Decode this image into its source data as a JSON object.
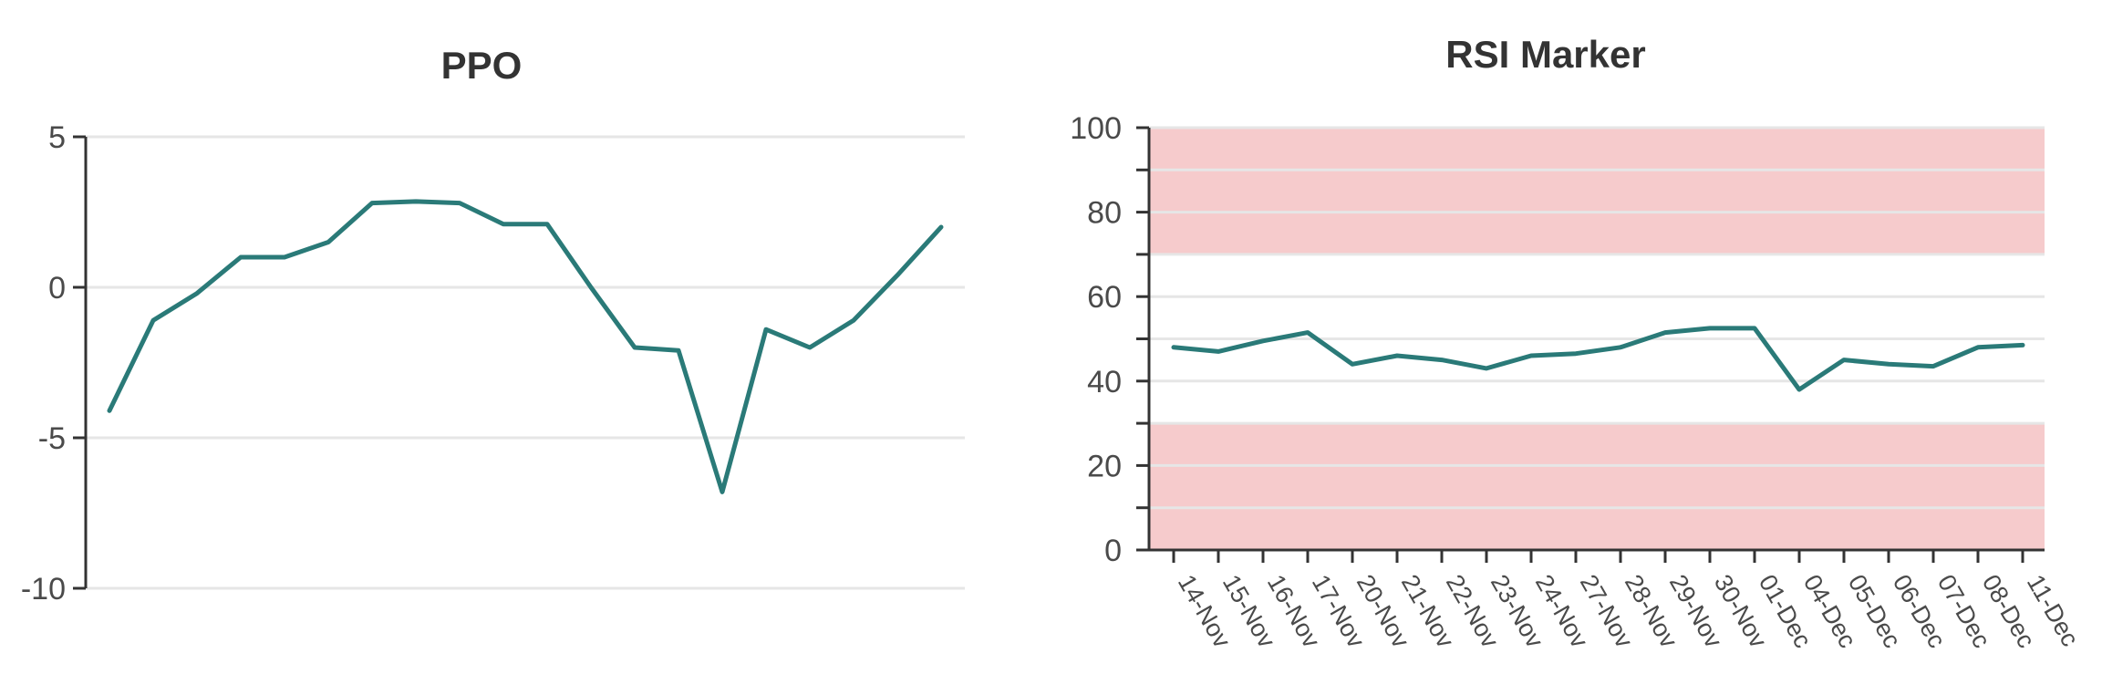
{
  "chart_data": [
    {
      "type": "line",
      "title": "PPO",
      "xlabel": "",
      "ylabel": "",
      "ylim": [
        -10,
        5
      ],
      "yticks": [
        "5",
        "0",
        "-5",
        "-10"
      ],
      "ytick_values": [
        5,
        0,
        -5,
        -10
      ],
      "grid": true,
      "series": [
        {
          "values": [
            -4.1,
            -1.1,
            -0.2,
            1.0,
            1.0,
            1.5,
            2.8,
            2.85,
            2.8,
            2.1,
            2.1,
            0.0,
            -2.0,
            -2.1,
            -6.8,
            -1.4,
            -2.0,
            -1.1,
            0.4,
            2.0
          ]
        }
      ],
      "colors": {
        "series": "#2a7a78",
        "grid": "#e6e6e6",
        "axis": "#333333"
      }
    },
    {
      "type": "line",
      "title": "RSI Marker",
      "xlabel": "",
      "ylabel": "",
      "ylim": [
        0,
        100
      ],
      "yticks": [
        "100",
        "80",
        "60",
        "40",
        "20",
        "0"
      ],
      "ytick_values": [
        100,
        80,
        60,
        40,
        20,
        0
      ],
      "grid": true,
      "categories": [
        "14-Nov",
        "15-Nov",
        "16-Nov",
        "17-Nov",
        "20-Nov",
        "21-Nov",
        "22-Nov",
        "23-Nov",
        "24-Nov",
        "27-Nov",
        "28-Nov",
        "29-Nov",
        "30-Nov",
        "01-Dec",
        "04-Dec",
        "05-Dec",
        "06-Dec",
        "07-Dec",
        "08-Dec",
        "11-Dec"
      ],
      "series": [
        {
          "values": [
            48,
            47,
            49.5,
            51.5,
            44,
            46,
            45,
            43,
            46,
            46.5,
            48,
            51.5,
            52.5,
            52.5,
            38,
            45,
            44,
            43.5,
            48,
            48.5
          ]
        }
      ],
      "bands": [
        {
          "from": 70,
          "to": 100
        },
        {
          "from": 0,
          "to": 30
        }
      ],
      "colors": {
        "series": "#2a7a78",
        "band": "#f3b7b9",
        "grid": "#e6e6e6",
        "axis": "#333333"
      }
    }
  ]
}
